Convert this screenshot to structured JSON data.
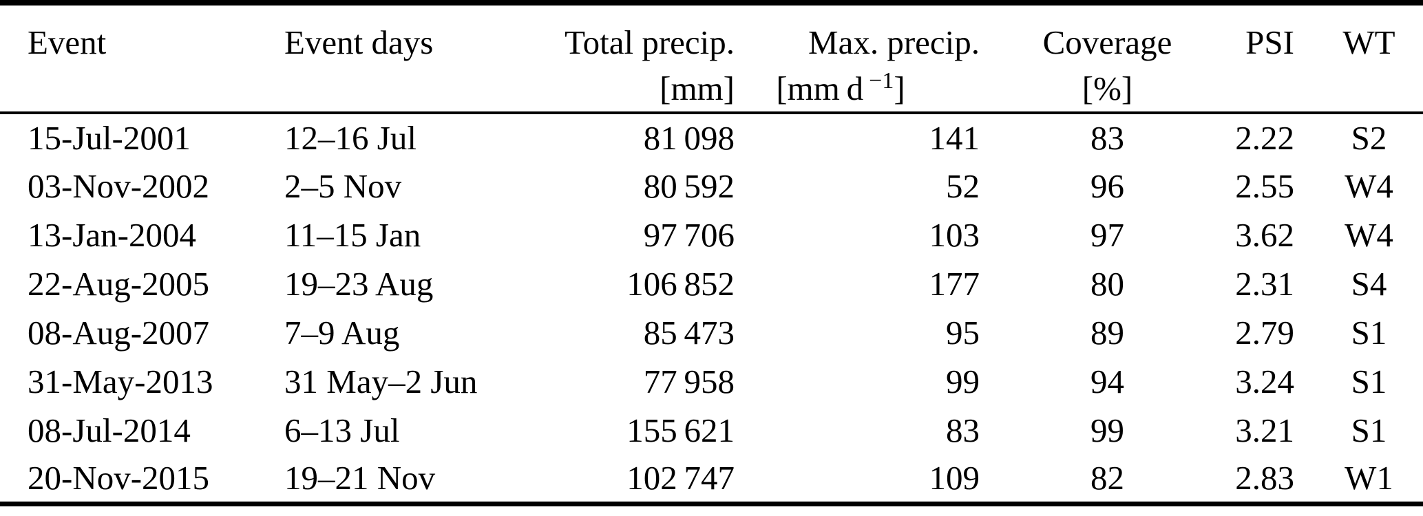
{
  "table": {
    "title": "precipitation-events-table",
    "columns": [
      {
        "label": "Event",
        "unit": ""
      },
      {
        "label": "Event days",
        "unit": ""
      },
      {
        "label": "Total precip.",
        "unit": "[mm]"
      },
      {
        "label": "Max. precip.",
        "unit_prefix": "[mm d",
        "unit_sup": "−1",
        "unit_suffix": "]"
      },
      {
        "label": "Coverage",
        "unit": "[%]"
      },
      {
        "label": "PSI",
        "unit": ""
      },
      {
        "label": "WT",
        "unit": ""
      }
    ],
    "rows": [
      {
        "cells": [
          "15-Jul-2001",
          "12–16 Jul",
          "81 098",
          "141",
          "83",
          "2.22",
          "S2"
        ]
      },
      {
        "cells": [
          "03-Nov-2002",
          "2–5 Nov",
          "80 592",
          "52",
          "96",
          "2.55",
          "W4"
        ]
      },
      {
        "cells": [
          "13-Jan-2004",
          "11–15 Jan",
          "97 706",
          "103",
          "97",
          "3.62",
          "W4"
        ]
      },
      {
        "cells": [
          "22-Aug-2005",
          "19–23 Aug",
          "106 852",
          "177",
          "80",
          "2.31",
          "S4"
        ]
      },
      {
        "cells": [
          "08-Aug-2007",
          "7–9 Aug",
          "85 473",
          "95",
          "89",
          "2.79",
          "S1"
        ]
      },
      {
        "cells": [
          "31-May-2013",
          "31 May–2 Jun",
          "77 958",
          "99",
          "94",
          "3.24",
          "S1"
        ]
      },
      {
        "cells": [
          "08-Jul-2014",
          "6–13 Jul",
          "155 621",
          "83",
          "99",
          "3.21",
          "S1"
        ]
      },
      {
        "cells": [
          "20-Nov-2015",
          "19–21 Nov",
          "102 747",
          "109",
          "82",
          "2.83",
          "W1"
        ]
      }
    ]
  },
  "colors": {
    "text": "#000000",
    "background": "#ffffff",
    "rule": "#000000"
  }
}
